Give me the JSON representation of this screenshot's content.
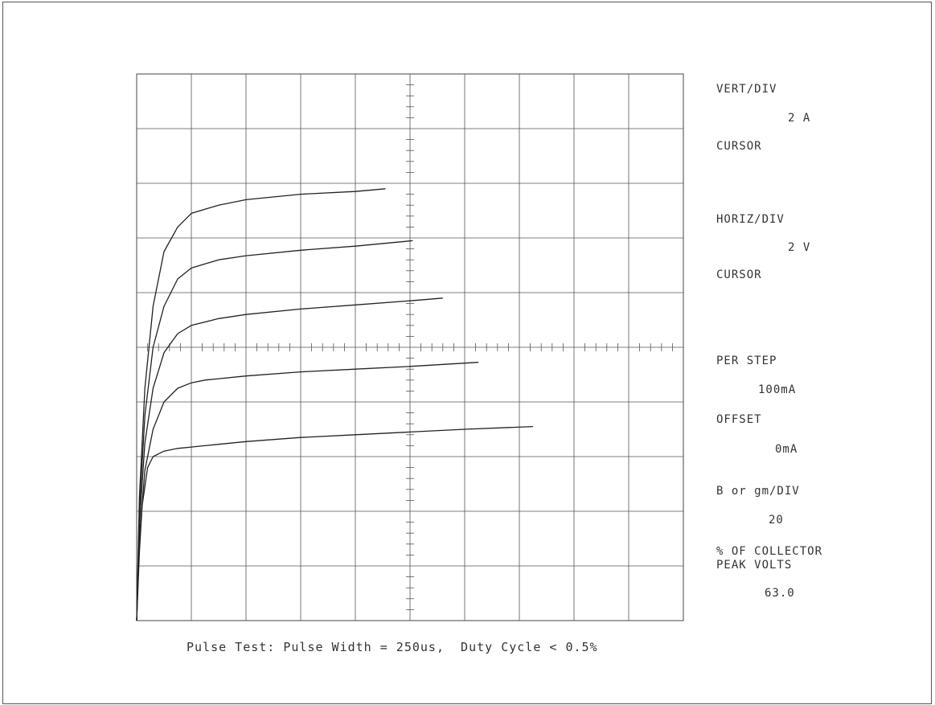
{
  "readout": {
    "vert_label": "VERT/DIV",
    "vert_value": "2 A",
    "vert_cursor": "CURSOR",
    "horiz_label": "HORIZ/DIV",
    "horiz_value": "2 V",
    "horiz_cursor": "CURSOR",
    "step_label": "PER STEP",
    "step_value": "100mA",
    "offset_label": "OFFSET",
    "offset_value": "0mA",
    "gain_label": "B or gm/DIV",
    "gain_value": "20",
    "collector_label_1": "% OF COLLECTOR",
    "collector_label_2": "PEAK VOLTS",
    "collector_value": "63.0"
  },
  "caption": "Pulse Test: Pulse Width = 250us,  Duty Cycle < 0.5%",
  "chart_data": {
    "type": "line",
    "xlim": [
      0,
      20
    ],
    "ylim": [
      0,
      20
    ],
    "grid": true,
    "divisions": {
      "x": 10,
      "y": 10
    },
    "series": [
      {
        "x": [
          0,
          0.1,
          0.2,
          0.4,
          0.6,
          0.8,
          1,
          1.5,
          2,
          3,
          4,
          6,
          8,
          10,
          12,
          14.5
        ],
        "y": [
          0,
          2.5,
          4.2,
          5.6,
          6.0,
          6.1,
          6.2,
          6.3,
          6.35,
          6.45,
          6.55,
          6.7,
          6.8,
          6.9,
          7.0,
          7.1
        ]
      },
      {
        "x": [
          0,
          0.1,
          0.3,
          0.6,
          1,
          1.5,
          2,
          2.5,
          3,
          4,
          6,
          8,
          10,
          12.5
        ],
        "y": [
          0,
          3,
          5.5,
          7,
          8,
          8.5,
          8.7,
          8.8,
          8.85,
          8.95,
          9.1,
          9.2,
          9.3,
          9.45
        ]
      },
      {
        "x": [
          0,
          0.1,
          0.3,
          0.6,
          1,
          1.5,
          2,
          3,
          4,
          6,
          8,
          10,
          11.2
        ],
        "y": [
          0,
          3.5,
          6.5,
          8.5,
          9.8,
          10.5,
          10.8,
          11.05,
          11.2,
          11.4,
          11.55,
          11.7,
          11.8
        ]
      },
      {
        "x": [
          0,
          0.1,
          0.3,
          0.6,
          1,
          1.5,
          2,
          3,
          4,
          6,
          8,
          10.1
        ],
        "y": [
          0,
          4,
          7.5,
          10,
          11.5,
          12.5,
          12.9,
          13.2,
          13.35,
          13.55,
          13.7,
          13.9
        ]
      },
      {
        "x": [
          0,
          0.1,
          0.3,
          0.6,
          1,
          1.5,
          2,
          2.5,
          3,
          4,
          6,
          8,
          9.1
        ],
        "y": [
          0,
          4.5,
          8.5,
          11.5,
          13.5,
          14.4,
          14.9,
          15.05,
          15.2,
          15.4,
          15.6,
          15.7,
          15.8
        ]
      }
    ]
  }
}
